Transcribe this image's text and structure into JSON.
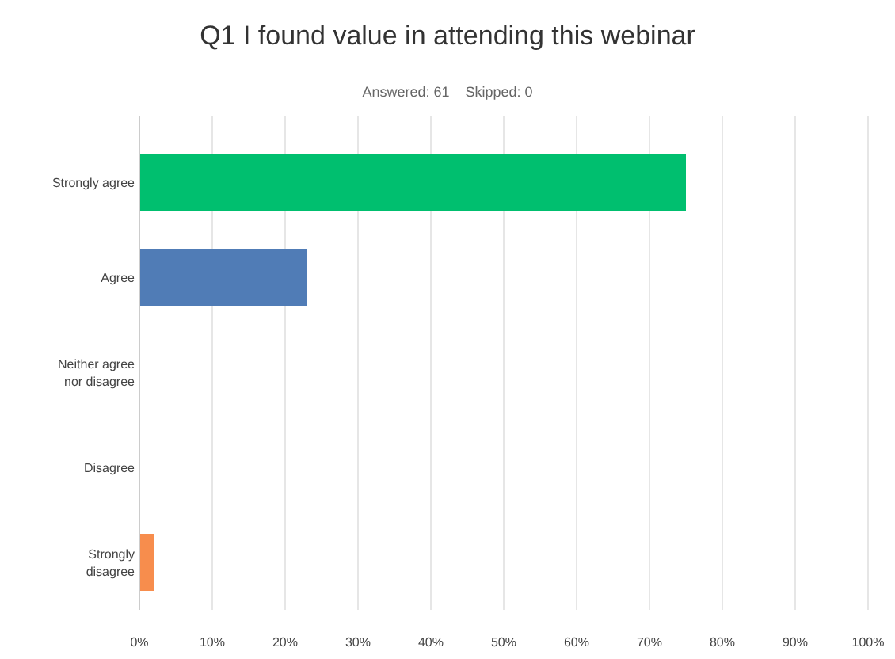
{
  "chart_data": {
    "type": "bar",
    "orientation": "horizontal",
    "title": "Q1 I found value in attending this webinar",
    "subtitle": "Answered: 61    Skipped: 0",
    "categories": [
      "Strongly agree",
      "Agree",
      "Neither agree nor disagree",
      "Disagree",
      "Strongly disagree"
    ],
    "values": [
      75,
      23,
      0,
      0,
      2
    ],
    "colors": [
      "#00bf6f",
      "#507cb6",
      "#a5aabd",
      "#dbdbdb",
      "#f78d4d"
    ],
    "xlim": [
      0,
      100
    ],
    "xticks": [
      {
        "value": 0,
        "label": "0%"
      },
      {
        "value": 10,
        "label": "10%"
      },
      {
        "value": 20,
        "label": "20%"
      },
      {
        "value": 30,
        "label": "30%"
      },
      {
        "value": 40,
        "label": "40%"
      },
      {
        "value": 50,
        "label": "50%"
      },
      {
        "value": 60,
        "label": "60%"
      },
      {
        "value": 70,
        "label": "70%"
      },
      {
        "value": 80,
        "label": "80%"
      },
      {
        "value": 90,
        "label": "90%"
      },
      {
        "value": 100,
        "label": "100%"
      }
    ],
    "grid": "x"
  }
}
